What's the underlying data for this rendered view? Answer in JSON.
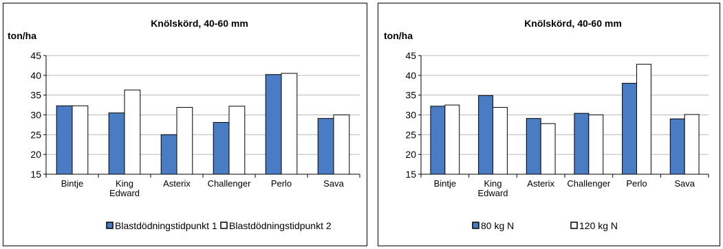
{
  "chart_data": [
    {
      "type": "bar",
      "title": "Knölskörd, 40-60 mm",
      "ylabel": "ton/ha",
      "xlabel": "",
      "ylim": [
        15,
        45
      ],
      "yticks": [
        15,
        20,
        25,
        30,
        35,
        40,
        45
      ],
      "categories": [
        "Bintje",
        "King Edward",
        "Asterix",
        "Challenger",
        "Perlo",
        "Sava"
      ],
      "category_lines": [
        [
          "Bintje"
        ],
        [
          "King",
          "Edward"
        ],
        [
          "Asterix"
        ],
        [
          "Challenger"
        ],
        [
          "Perlo"
        ],
        [
          "Sava"
        ]
      ],
      "series": [
        {
          "name": "Blastdödningstidpunkt 1",
          "color": "#4a7cc4",
          "values": [
            32.3,
            30.5,
            25.0,
            28.1,
            40.2,
            29.1
          ]
        },
        {
          "name": "Blastdödningstidpunkt 2",
          "color": "#ffffff",
          "values": [
            32.3,
            36.3,
            31.9,
            32.2,
            40.5,
            30.0
          ]
        }
      ],
      "grid": true,
      "legend": "bottom"
    },
    {
      "type": "bar",
      "title": "Knölskörd, 40-60 mm",
      "ylabel": "ton/ha",
      "xlabel": "",
      "ylim": [
        15,
        45
      ],
      "yticks": [
        15,
        20,
        25,
        30,
        35,
        40,
        45
      ],
      "categories": [
        "Bintje",
        "King Edward",
        "Asterix",
        "Challenger",
        "Perlo",
        "Sava"
      ],
      "category_lines": [
        [
          "Bintje"
        ],
        [
          "King",
          "Edward"
        ],
        [
          "Asterix"
        ],
        [
          "Challenger"
        ],
        [
          "Perlo"
        ],
        [
          "Sava"
        ]
      ],
      "series": [
        {
          "name": "80 kg N",
          "color": "#4a7cc4",
          "values": [
            32.2,
            34.9,
            29.1,
            30.4,
            38.0,
            29.0
          ]
        },
        {
          "name": "120 kg N",
          "color": "#ffffff",
          "values": [
            32.5,
            31.9,
            27.8,
            30.0,
            42.8,
            30.1
          ]
        }
      ],
      "grid": true,
      "legend": "bottom"
    }
  ]
}
